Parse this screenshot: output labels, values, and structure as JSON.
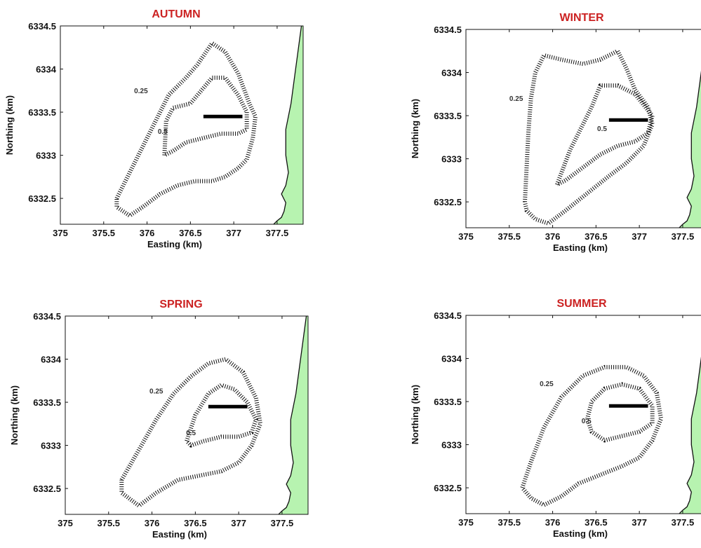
{
  "chart_data": [
    {
      "type": "contour",
      "title": "AUTUMN",
      "xlabel": "Easting (km)",
      "ylabel": "Northing (km)",
      "xlim": [
        375,
        377.8
      ],
      "ylim": [
        6332.2,
        6334.5
      ],
      "xticks": [
        375,
        375.5,
        376,
        376.5,
        377,
        377.5
      ],
      "yticks": [
        6332.5,
        6333,
        6333.5,
        6334,
        6334.5
      ],
      "source_line": {
        "x": [
          376.65,
          377.1
        ],
        "y": [
          6333.45,
          6333.45
        ]
      },
      "coastline": {
        "x": [
          377.78,
          377.74,
          377.7,
          377.66,
          377.6,
          377.6,
          377.63,
          377.6,
          377.55,
          377.6,
          377.58,
          377.55,
          377.5,
          377.46
        ],
        "y": [
          6334.5,
          6334.2,
          6333.9,
          6333.6,
          6333.3,
          6333.0,
          6332.8,
          6332.65,
          6332.55,
          6332.45,
          6332.35,
          6332.28,
          6332.24,
          6332.2
        ]
      },
      "contours": [
        {
          "level": "0.25",
          "label_pos": [
            375.93,
            6333.72
          ],
          "x": [
            375.65,
            375.85,
            376.05,
            376.25,
            376.45,
            376.58,
            376.75,
            376.9,
            377.05,
            377.18,
            377.25,
            377.22,
            377.15,
            377.05,
            376.9,
            376.75,
            376.55,
            376.35,
            376.15,
            375.95,
            375.8,
            375.65,
            375.65
          ],
          "y": [
            6332.5,
            6332.9,
            6333.3,
            6333.7,
            6333.9,
            6334.05,
            6334.3,
            6334.2,
            6333.95,
            6333.6,
            6333.45,
            6333.2,
            6332.95,
            6332.85,
            6332.75,
            6332.7,
            6332.7,
            6332.65,
            6332.55,
            6332.4,
            6332.3,
            6332.4,
            6332.5
          ]
        },
        {
          "level": "0.5",
          "label_pos": [
            376.18,
            6333.25
          ],
          "x": [
            376.2,
            376.22,
            376.3,
            376.5,
            376.75,
            376.9,
            377.05,
            377.15,
            377.15,
            377.05,
            376.85,
            376.65,
            376.45,
            376.3,
            376.2
          ],
          "y": [
            6333.0,
            6333.4,
            6333.55,
            6333.6,
            6333.9,
            6333.9,
            6333.7,
            6333.5,
            6333.3,
            6333.25,
            6333.25,
            6333.2,
            6333.15,
            6333.05,
            6333.0
          ]
        }
      ]
    },
    {
      "type": "contour",
      "title": "WINTER",
      "xlabel": "Easting (km)",
      "ylabel": "Northing (km)",
      "xlim": [
        375,
        377.8
      ],
      "ylim": [
        6332.2,
        6334.5
      ],
      "xticks": [
        375,
        375.5,
        376,
        376.5,
        377,
        377.5
      ],
      "yticks": [
        6332.5,
        6333,
        6333.5,
        6334,
        6334.5
      ],
      "source_line": {
        "x": [
          376.65,
          377.1
        ],
        "y": [
          6333.45,
          6333.45
        ]
      },
      "coastline": {
        "x": [
          377.78,
          377.74,
          377.7,
          377.66,
          377.6,
          377.6,
          377.63,
          377.6,
          377.55,
          377.6,
          377.58,
          377.55,
          377.5,
          377.46
        ],
        "y": [
          6334.5,
          6334.2,
          6333.9,
          6333.6,
          6333.3,
          6333.0,
          6332.8,
          6332.65,
          6332.55,
          6332.45,
          6332.35,
          6332.28,
          6332.24,
          6332.2
        ]
      },
      "contours": [
        {
          "level": "0.25",
          "label_pos": [
            375.58,
            6333.67
          ],
          "x": [
            375.68,
            375.7,
            375.72,
            375.75,
            375.8,
            375.9,
            376.1,
            376.35,
            376.55,
            376.75,
            376.85,
            376.95,
            377.1,
            377.15,
            377.05,
            376.85,
            376.65,
            376.4,
            376.15,
            375.95,
            375.8,
            375.7,
            375.68
          ],
          "y": [
            6332.5,
            6332.9,
            6333.3,
            6333.7,
            6334.0,
            6334.2,
            6334.15,
            6334.1,
            6334.15,
            6334.25,
            6334.05,
            6333.8,
            6333.6,
            6333.4,
            6333.15,
            6332.95,
            6332.8,
            6332.6,
            6332.4,
            6332.25,
            6332.3,
            6332.4,
            6332.5
          ]
        },
        {
          "level": "0.5",
          "label_pos": [
            376.57,
            6333.32
          ],
          "x": [
            376.05,
            376.2,
            376.35,
            376.45,
            376.55,
            376.75,
            376.95,
            377.15,
            377.1,
            376.95,
            376.75,
            376.55,
            376.35,
            376.15,
            376.05
          ],
          "y": [
            6332.7,
            6333.1,
            6333.4,
            6333.6,
            6333.85,
            6333.85,
            6333.75,
            6333.5,
            6333.3,
            6333.2,
            6333.15,
            6333.05,
            6332.9,
            6332.75,
            6332.7
          ]
        }
      ]
    },
    {
      "type": "contour",
      "title": "SPRING",
      "xlabel": "Easting (km)",
      "ylabel": "Northing (km)",
      "xlim": [
        375,
        377.8
      ],
      "ylim": [
        6332.2,
        6334.5
      ],
      "xticks": [
        375,
        375.5,
        376,
        376.5,
        377,
        377.5
      ],
      "yticks": [
        6332.5,
        6333,
        6333.5,
        6334,
        6334.5
      ],
      "source_line": {
        "x": [
          376.65,
          377.1
        ],
        "y": [
          6333.45,
          6333.45
        ]
      },
      "coastline": {
        "x": [
          377.78,
          377.74,
          377.7,
          377.66,
          377.6,
          377.6,
          377.63,
          377.6,
          377.55,
          377.6,
          377.58,
          377.55,
          377.5,
          377.46
        ],
        "y": [
          6334.5,
          6334.2,
          6333.9,
          6333.6,
          6333.3,
          6333.0,
          6332.8,
          6332.65,
          6332.55,
          6332.45,
          6332.35,
          6332.28,
          6332.24,
          6332.2
        ]
      },
      "contours": [
        {
          "level": "0.25",
          "label_pos": [
            376.05,
            6333.6
          ],
          "x": [
            375.65,
            375.85,
            376.05,
            376.25,
            376.45,
            376.65,
            376.85,
            377.05,
            377.2,
            377.25,
            377.15,
            377.0,
            376.8,
            376.55,
            376.3,
            376.05,
            375.85,
            375.65,
            375.65
          ],
          "y": [
            6332.6,
            6332.95,
            6333.3,
            6333.6,
            6333.8,
            6333.95,
            6334.0,
            6333.85,
            6333.55,
            6333.25,
            6333.0,
            6332.8,
            6332.7,
            6332.65,
            6332.6,
            6332.45,
            6332.3,
            6332.45,
            6332.6
          ]
        },
        {
          "level": "0.5",
          "label_pos": [
            376.45,
            6333.12
          ],
          "x": [
            376.4,
            376.5,
            376.65,
            376.8,
            376.95,
            377.1,
            377.2,
            377.15,
            377.0,
            376.8,
            376.6,
            376.45,
            376.4
          ],
          "y": [
            6333.05,
            6333.35,
            6333.6,
            6333.7,
            6333.65,
            6333.5,
            6333.3,
            6333.15,
            6333.1,
            6333.1,
            6333.05,
            6333.0,
            6333.05
          ]
        }
      ]
    },
    {
      "type": "contour",
      "title": "SUMMER",
      "xlabel": "Easting (km)",
      "ylabel": "Northing (km)",
      "xlim": [
        375,
        377.8
      ],
      "ylim": [
        6332.2,
        6334.5
      ],
      "xticks": [
        375,
        375.5,
        376,
        376.5,
        377,
        377.5
      ],
      "yticks": [
        6332.5,
        6333,
        6333.5,
        6334,
        6334.5
      ],
      "source_line": {
        "x": [
          376.65,
          377.1
        ],
        "y": [
          6333.45,
          6333.45
        ]
      },
      "coastline": {
        "x": [
          377.78,
          377.74,
          377.7,
          377.66,
          377.6,
          377.6,
          377.63,
          377.6,
          377.55,
          377.6,
          377.58,
          377.55,
          377.5,
          377.46
        ],
        "y": [
          6334.5,
          6334.2,
          6333.9,
          6333.6,
          6333.3,
          6333.0,
          6332.8,
          6332.65,
          6332.55,
          6332.45,
          6332.35,
          6332.28,
          6332.24,
          6332.2
        ]
      },
      "contours": [
        {
          "level": "0.25",
          "label_pos": [
            375.93,
            6333.68
          ],
          "x": [
            375.65,
            375.75,
            375.9,
            376.1,
            376.35,
            376.6,
            376.85,
            377.05,
            377.2,
            377.25,
            377.15,
            377.0,
            376.8,
            376.55,
            376.3,
            376.1,
            375.9,
            375.75,
            375.65
          ],
          "y": [
            6332.5,
            6332.8,
            6333.2,
            6333.55,
            6333.8,
            6333.9,
            6333.9,
            6333.8,
            6333.6,
            6333.3,
            6333.05,
            6332.85,
            6332.75,
            6332.65,
            6332.55,
            6332.4,
            6332.3,
            6332.38,
            6332.5
          ]
        },
        {
          "level": "0.5",
          "label_pos": [
            376.39,
            6333.25
          ],
          "x": [
            376.4,
            376.45,
            376.6,
            376.8,
            377.0,
            377.15,
            377.15,
            377.0,
            376.8,
            376.6,
            376.45,
            376.4
          ],
          "y": [
            6333.3,
            6333.5,
            6333.65,
            6333.7,
            6333.65,
            6333.45,
            6333.25,
            6333.15,
            6333.1,
            6333.05,
            6333.15,
            6333.3
          ]
        }
      ]
    }
  ]
}
